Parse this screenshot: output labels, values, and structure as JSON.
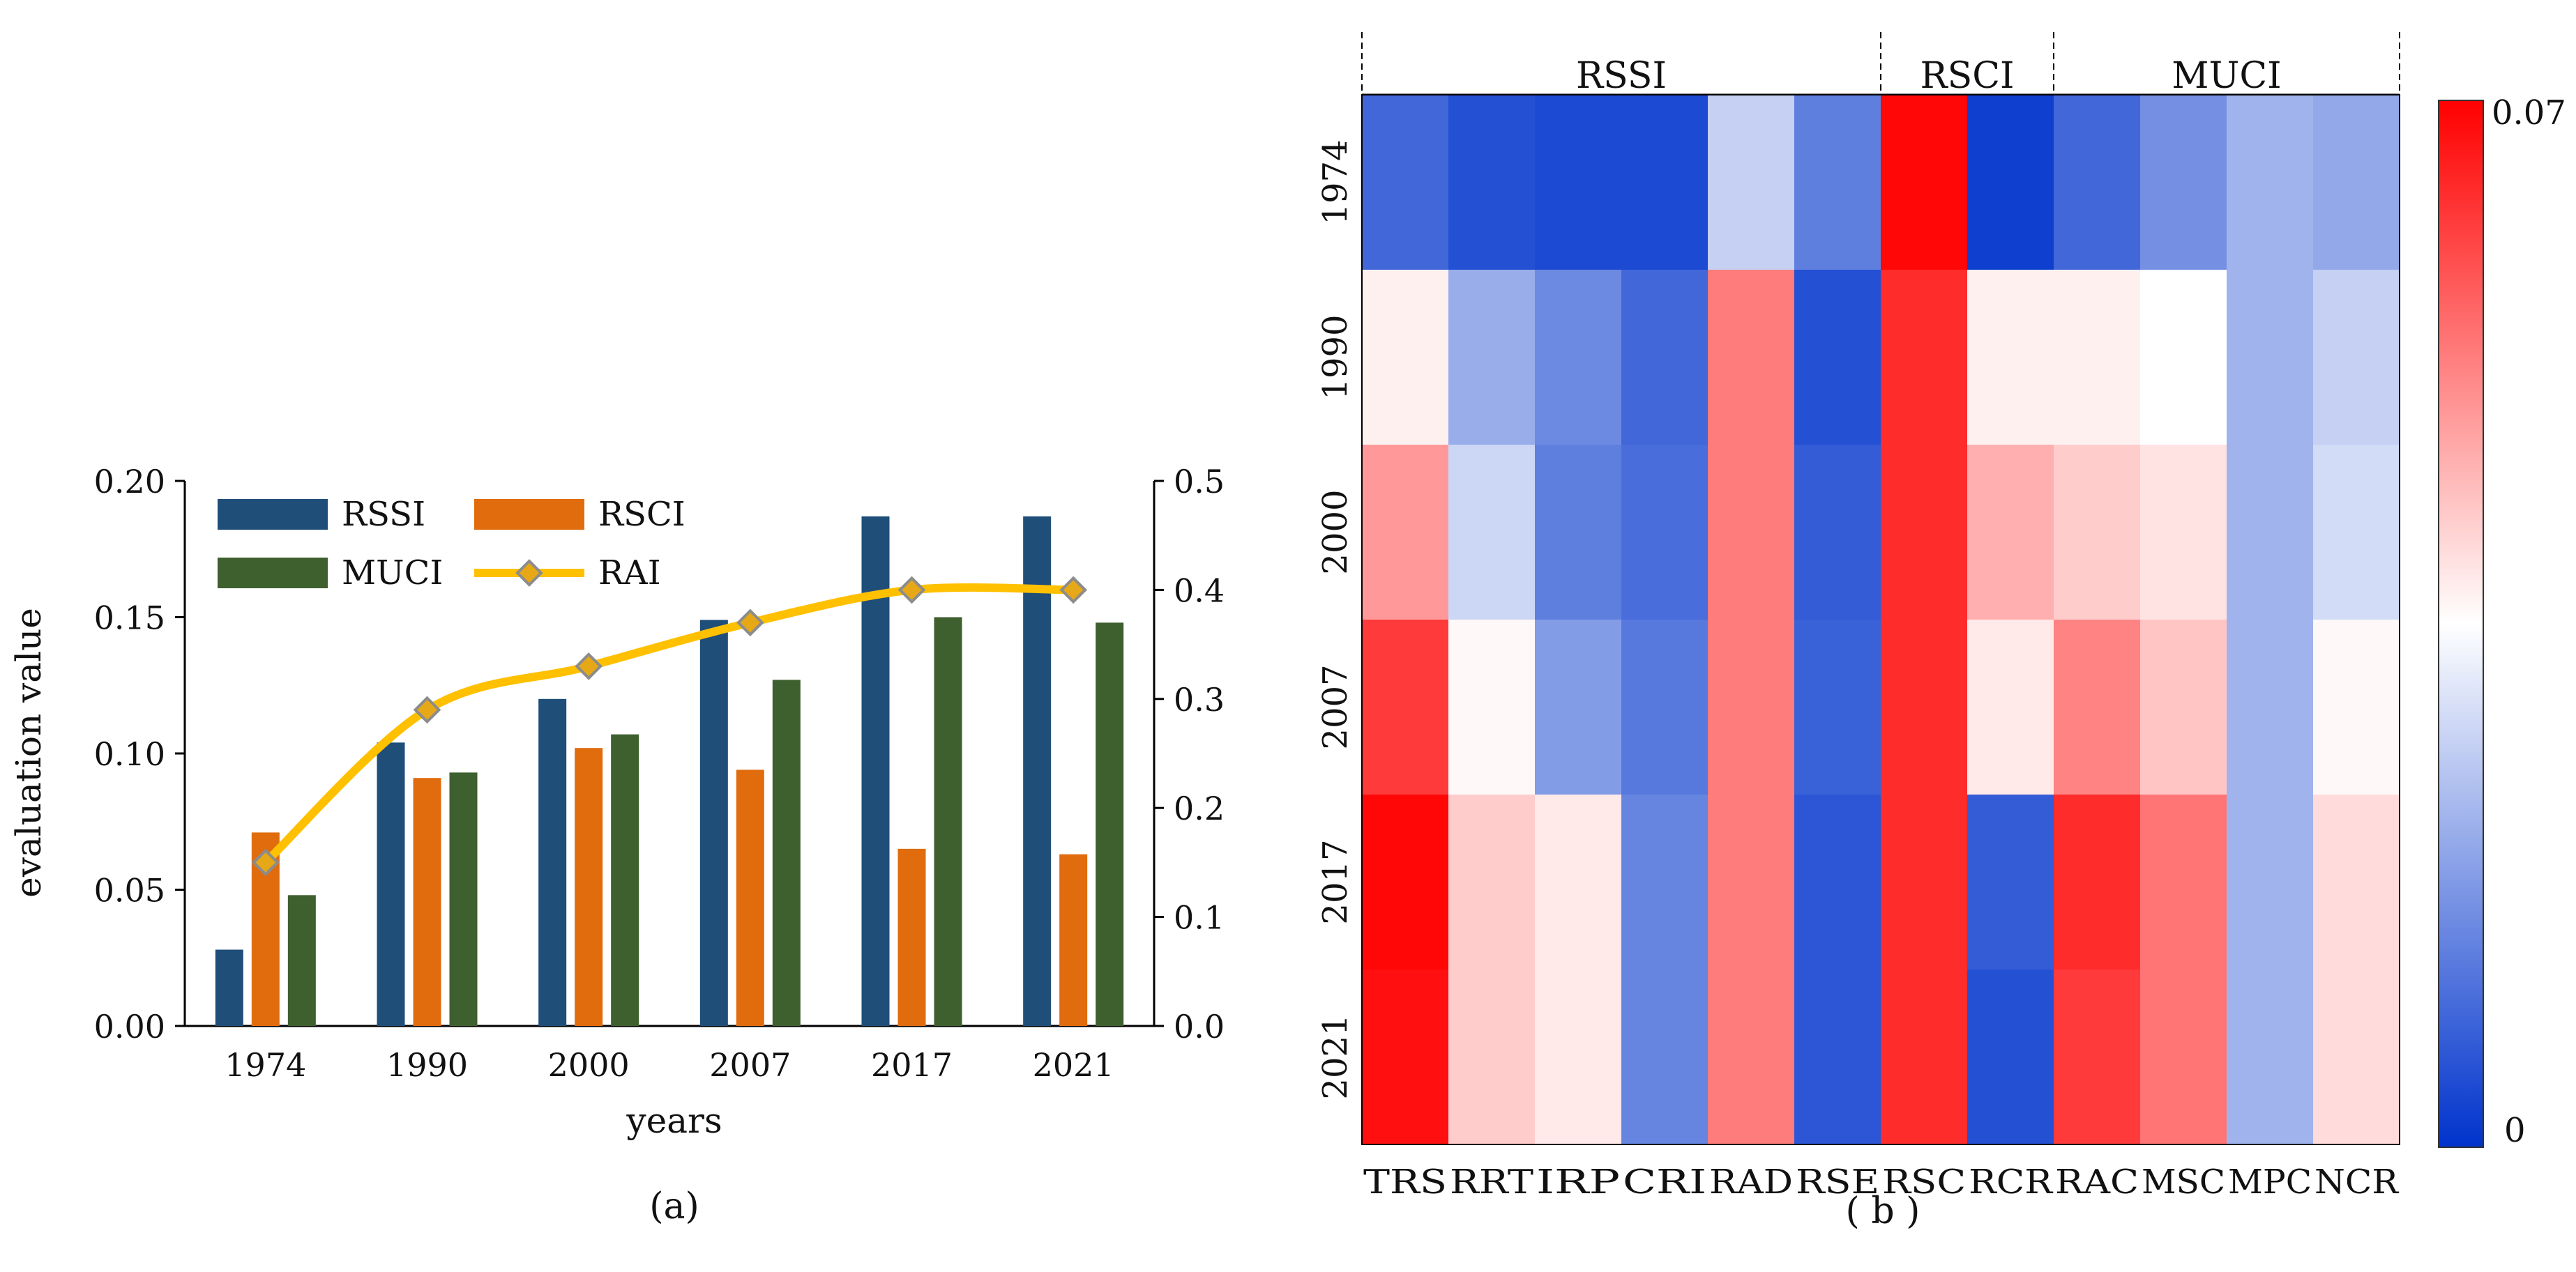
{
  "chart_data": [
    {
      "type": "bar",
      "panel_label": "(a)",
      "categories": [
        "1974",
        "1990",
        "2000",
        "2007",
        "2017",
        "2021"
      ],
      "xlabel": "years",
      "ylabel": "evaluation value",
      "ylim": [
        0,
        0.2
      ],
      "y_ticks": [
        "0.00",
        "0.05",
        "0.10",
        "0.15",
        "0.20"
      ],
      "y2lim": [
        0,
        0.5
      ],
      "y2_ticks": [
        "0.0",
        "0.1",
        "0.2",
        "0.3",
        "0.4",
        "0.5"
      ],
      "legend_position": "top-left",
      "series": [
        {
          "name": "RSSI",
          "type": "bar",
          "axis": "left",
          "color": "#1f4e79",
          "values": [
            0.028,
            0.104,
            0.12,
            0.149,
            0.187,
            0.187
          ]
        },
        {
          "name": "RSCI",
          "type": "bar",
          "axis": "left",
          "color": "#e06c0e",
          "values": [
            0.071,
            0.091,
            0.102,
            0.094,
            0.065,
            0.063
          ]
        },
        {
          "name": "MUCI",
          "type": "bar",
          "axis": "left",
          "color": "#3e5f2e",
          "values": [
            0.048,
            0.093,
            0.107,
            0.127,
            0.15,
            0.148
          ]
        },
        {
          "name": "RAI",
          "type": "line",
          "axis": "right",
          "color": "#ffc000",
          "marker_color": "#e6a817",
          "marker_edge": "#8c8c8c",
          "values": [
            0.15,
            0.29,
            0.33,
            0.37,
            0.4,
            0.4
          ]
        }
      ]
    },
    {
      "type": "heatmap",
      "panel_label": "( b )",
      "rows": [
        "1974",
        "1990",
        "2000",
        "2007",
        "2017",
        "2021"
      ],
      "columns": [
        "TRS",
        "RRT",
        "IRP",
        "CRI",
        "RAD",
        "RSE",
        "RSC",
        "RCR",
        "RAC",
        "MSC",
        "MPC",
        "NCR"
      ],
      "groups": [
        {
          "label": "RSSI",
          "start": 0,
          "end": 6
        },
        {
          "label": "RSCI",
          "start": 6,
          "end": 8
        },
        {
          "label": "MUCI",
          "start": 8,
          "end": 12
        }
      ],
      "colorbar": {
        "min": 0,
        "max": 0.07,
        "min_label": "0",
        "max_label": "0.07",
        "colors": [
          "#0033cc",
          "#ffffff",
          "#ff0000"
        ]
      },
      "values": [
        [
          0.009,
          0.005,
          0.004,
          0.004,
          0.027,
          0.013,
          0.069,
          0.002,
          0.009,
          0.016,
          0.022,
          0.02
        ],
        [
          0.037,
          0.021,
          0.015,
          0.009,
          0.053,
          0.005,
          0.064,
          0.037,
          0.037,
          0.035,
          0.022,
          0.027
        ],
        [
          0.049,
          0.028,
          0.013,
          0.01,
          0.053,
          0.007,
          0.064,
          0.046,
          0.042,
          0.039,
          0.022,
          0.029
        ],
        [
          0.062,
          0.036,
          0.018,
          0.012,
          0.053,
          0.008,
          0.064,
          0.038,
          0.052,
          0.043,
          0.022,
          0.036
        ],
        [
          0.069,
          0.042,
          0.038,
          0.014,
          0.053,
          0.006,
          0.064,
          0.007,
          0.064,
          0.054,
          0.022,
          0.04
        ],
        [
          0.068,
          0.042,
          0.038,
          0.014,
          0.053,
          0.006,
          0.064,
          0.005,
          0.062,
          0.054,
          0.022,
          0.04
        ]
      ]
    }
  ]
}
